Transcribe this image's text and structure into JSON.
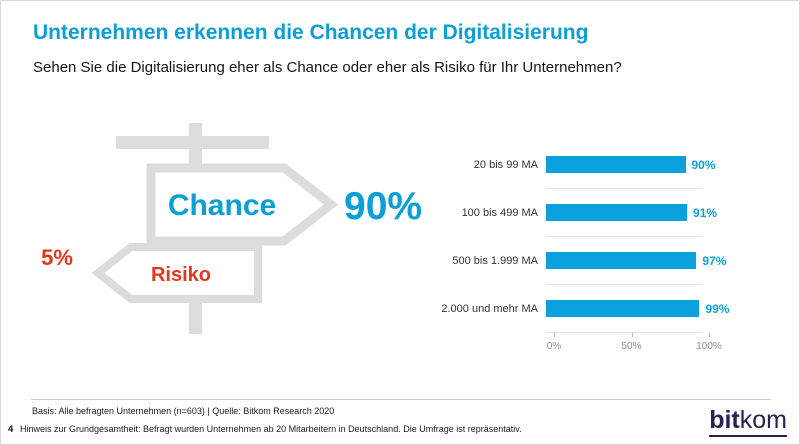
{
  "title": "Unternehmen erkennen die Chancen der Digitalisierung",
  "subtitle": "Sehen Sie die Digitalisierung eher als Chance oder eher als Risiko für Ihr Unternehmen?",
  "signpost": {
    "chance_label": "Chance",
    "chance_value": "90%",
    "risiko_label": "Risiko",
    "risiko_value": "5%"
  },
  "chart_data": {
    "type": "bar",
    "orientation": "horizontal",
    "categories": [
      "20 bis 99 MA",
      "100 bis 499 MA",
      "500 bis 1.999 MA",
      "2.000 und mehr MA"
    ],
    "values": [
      90,
      91,
      97,
      99
    ],
    "value_labels": [
      "90%",
      "91%",
      "97%",
      "99%"
    ],
    "x_ticks": [
      "0%",
      "50%",
      "100%"
    ],
    "x_tick_positions": [
      0,
      50,
      100
    ],
    "xlim": [
      0,
      100
    ],
    "bar_color": "#0ba1dc",
    "legend": "none",
    "grid": "row-separators"
  },
  "footer": {
    "basis": "Basis: Alle befragten Unternehmen (n=603) | Quelle: Bitkom Research 2020",
    "page_number": "4",
    "hinweis": "Hinweis zur Grundgesamtheit: Befragt wurden Unternehmen ab 20 Mitarbeitern in Deutschland.  Die Umfrage ist repräsentativ."
  },
  "logo": {
    "bold": "bit",
    "regular": "kom"
  },
  "colors": {
    "accent_blue": "#0a9fd6",
    "accent_red": "#e5361a",
    "sign_gray": "#dcdcdc"
  }
}
